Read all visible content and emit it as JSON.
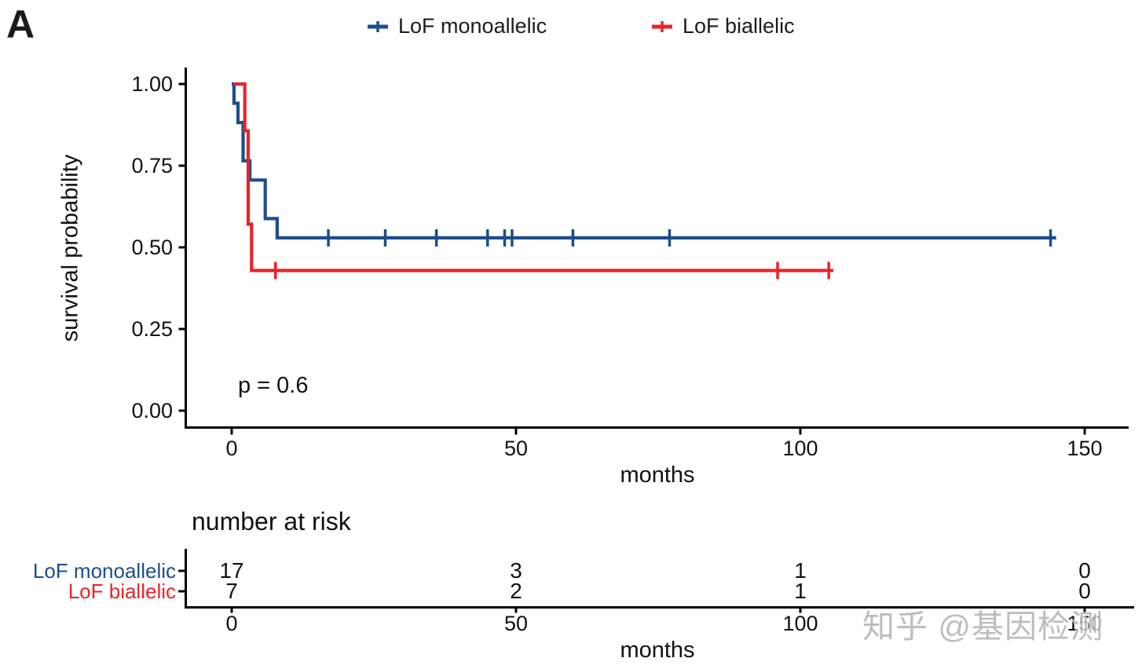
{
  "panel_label": "A",
  "legend": {
    "items": [
      {
        "label": "LoF monoallelic",
        "color": "#1d4e89"
      },
      {
        "label": "LoF biallelic",
        "color": "#e8242a"
      }
    ]
  },
  "watermark": "知乎 @基因检测",
  "chart_data": {
    "type": "line",
    "subtype": "kaplan-meier-step-survival",
    "title": "",
    "xlabel": "months",
    "ylabel": "survival probability",
    "xlim": [
      0,
      150
    ],
    "ylim": [
      0.0,
      1.0
    ],
    "grid": false,
    "legend_position": "top",
    "pvalue_label": "p = 0.6",
    "x_ticks": [
      {
        "value": 0,
        "label": "0"
      },
      {
        "value": 50,
        "label": "50"
      },
      {
        "value": 100,
        "label": "100"
      },
      {
        "value": 150,
        "label": "150"
      }
    ],
    "y_ticks": [
      {
        "value": 0.0,
        "label": "0.00"
      },
      {
        "value": 0.25,
        "label": "0.25"
      },
      {
        "value": 0.5,
        "label": "0.50"
      },
      {
        "value": 0.75,
        "label": "0.75"
      },
      {
        "value": 1.0,
        "label": "1.00"
      }
    ],
    "series": [
      {
        "name": "LoF monoallelic",
        "color": "#1d4e89",
        "n": 17,
        "steps": [
          [
            0,
            1.0
          ],
          [
            0.4,
            0.941
          ],
          [
            1.1,
            0.882
          ],
          [
            2.0,
            0.765
          ],
          [
            3.2,
            0.706
          ],
          [
            5.9,
            0.588
          ],
          [
            8.0,
            0.529
          ]
        ],
        "end_time": 145,
        "censor_times": [
          17,
          27,
          36,
          45,
          48,
          49.3,
          60,
          77,
          144
        ]
      },
      {
        "name": "LoF biallelic",
        "color": "#e8242a",
        "n": 7,
        "steps": [
          [
            0.3,
            1.0
          ],
          [
            2.3,
            0.857
          ],
          [
            2.9,
            0.571
          ],
          [
            3.5,
            0.429
          ]
        ],
        "end_time": 105.8,
        "censor_times": [
          7.7,
          96,
          105
        ]
      }
    ]
  },
  "risk_table": {
    "title": "number at risk",
    "xlabel": "months",
    "x_tick_labels": [
      "0",
      "50",
      "100",
      "150"
    ],
    "rows": [
      {
        "label": "LoF monoallelic",
        "color": "#1d4e89",
        "values": [
          "17",
          "3",
          "1",
          "0"
        ]
      },
      {
        "label": "LoF biallelic",
        "color": "#e8242a",
        "values": [
          "7",
          "2",
          "1",
          "0"
        ]
      }
    ]
  }
}
